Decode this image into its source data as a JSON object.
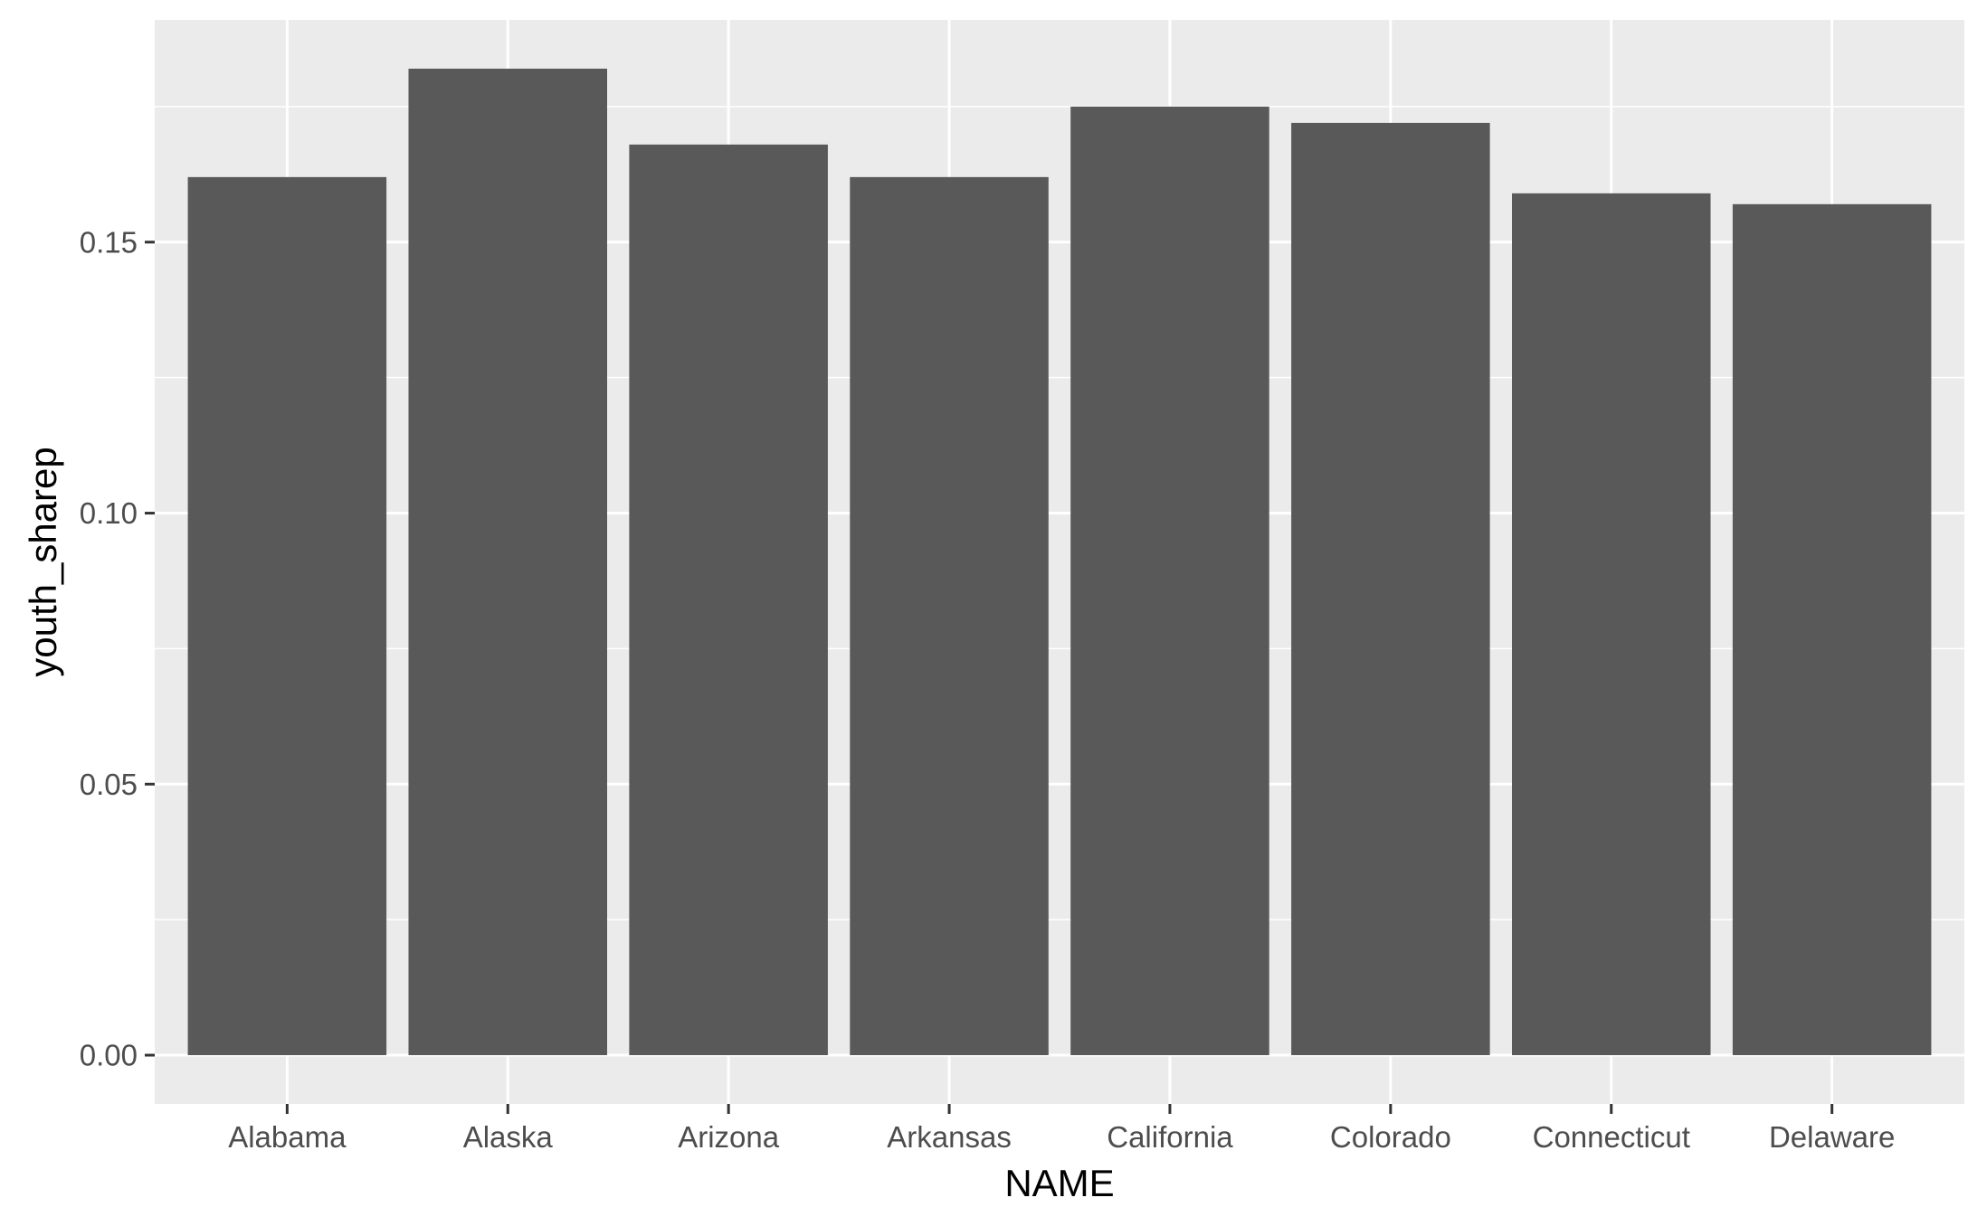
{
  "chart_data": {
    "type": "bar",
    "categories": [
      "Alabama",
      "Alaska",
      "Arizona",
      "Arkansas",
      "California",
      "Colorado",
      "Connecticut",
      "Delaware"
    ],
    "values": [
      0.162,
      0.182,
      0.168,
      0.162,
      0.175,
      0.172,
      0.159,
      0.157
    ],
    "xlabel": "NAME",
    "ylabel": "youth_sharep",
    "ylim": [
      -0.009,
      0.191
    ],
    "yticks": [
      0.0,
      0.05,
      0.1,
      0.15
    ],
    "ytick_labels": [
      "0.00",
      "0.05",
      "0.10",
      "0.15"
    ],
    "grid": true,
    "colors": {
      "panel_background": "#ebebeb",
      "grid_major": "#ffffff",
      "bar_fill": "#595959",
      "tick_text": "#4d4d4d",
      "tick_mark": "#333333",
      "axis_title": "#000000"
    }
  }
}
